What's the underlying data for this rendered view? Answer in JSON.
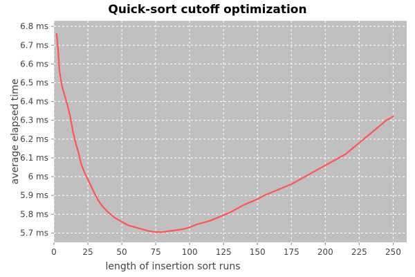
{
  "chart_data": {
    "type": "line",
    "title": "Quick-sort cutoff optimization",
    "xlabel": "length of insertion sort runs",
    "ylabel": "average elapsed time",
    "xlim": [
      0,
      260
    ],
    "ylim": [
      5.65,
      6.83
    ],
    "x_ticks": [
      0,
      25,
      50,
      75,
      100,
      125,
      150,
      175,
      200,
      225,
      250
    ],
    "x_tick_labels": [
      "0",
      "25",
      "50",
      "75",
      "100",
      "125",
      "150",
      "175",
      "200",
      "225",
      "250"
    ],
    "y_ticks": [
      5.7,
      5.8,
      5.9,
      6.0,
      6.1,
      6.2,
      6.3,
      6.4,
      6.5,
      6.6,
      6.7,
      6.8
    ],
    "y_tick_labels": [
      "5.7 ms",
      "5.8 ms",
      "5.9 ms",
      "6 ms",
      "6.1 ms",
      "6.2 ms",
      "6.3 ms",
      "6.4 ms",
      "6.5 ms",
      "6.6 ms",
      "6.7 ms",
      "6.8 ms"
    ],
    "grid": true,
    "legend": "none",
    "colors": {
      "plot_background": "#c0c0c0",
      "grid": "#ffffff",
      "line": "#ff5555"
    },
    "series": [
      {
        "x": [
          2,
          3,
          4,
          5,
          6,
          8,
          10,
          12,
          14,
          16,
          18,
          20,
          22,
          24,
          26,
          28,
          30,
          33,
          36,
          40,
          45,
          50,
          55,
          60,
          65,
          70,
          75,
          80,
          85,
          90,
          95,
          100,
          105,
          110,
          115,
          120,
          125,
          130,
          135,
          140,
          145,
          150,
          155,
          160,
          165,
          170,
          175,
          180,
          185,
          190,
          195,
          200,
          205,
          210,
          215,
          220,
          225,
          230,
          235,
          240,
          245,
          250
        ],
        "y": [
          6.76,
          6.68,
          6.57,
          6.52,
          6.48,
          6.43,
          6.38,
          6.32,
          6.24,
          6.18,
          6.13,
          6.07,
          6.03,
          6.0,
          5.97,
          5.94,
          5.91,
          5.87,
          5.84,
          5.81,
          5.78,
          5.76,
          5.74,
          5.73,
          5.72,
          5.71,
          5.705,
          5.705,
          5.71,
          5.715,
          5.72,
          5.73,
          5.745,
          5.755,
          5.765,
          5.78,
          5.795,
          5.81,
          5.83,
          5.85,
          5.865,
          5.88,
          5.9,
          5.915,
          5.93,
          5.945,
          5.96,
          5.98,
          6.0,
          6.02,
          6.04,
          6.06,
          6.08,
          6.1,
          6.12,
          6.15,
          6.18,
          6.21,
          6.24,
          6.27,
          6.3,
          6.32
        ]
      }
    ]
  }
}
